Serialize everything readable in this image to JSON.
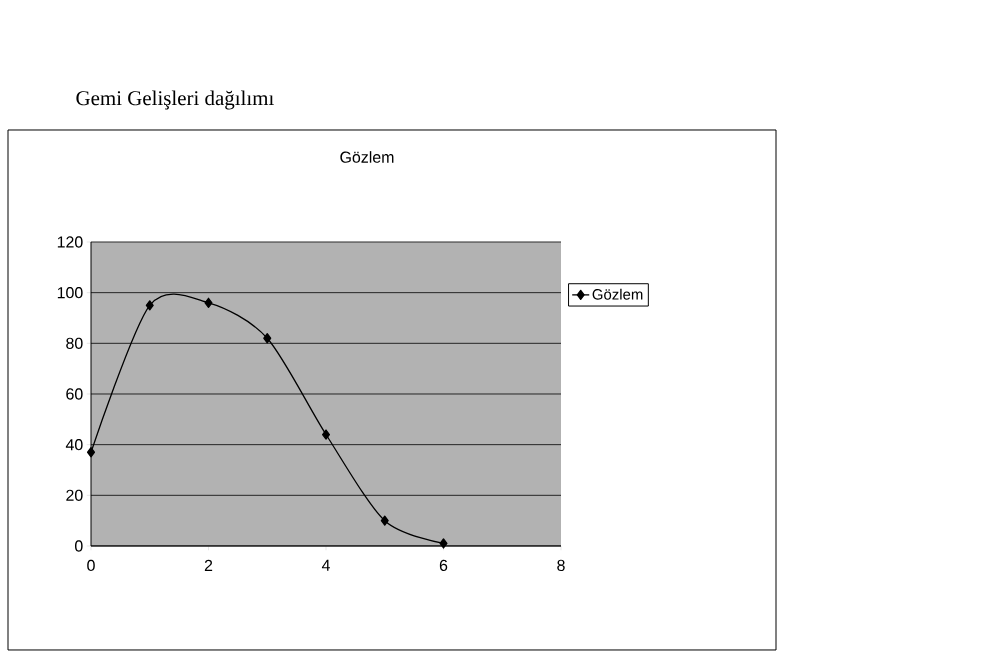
{
  "chart_data": {
    "type": "line",
    "title": "Gemi Gelişleri dağılımı",
    "subtitle": "Gözlem",
    "x": [
      0,
      1,
      2,
      3,
      4,
      5,
      6
    ],
    "series": [
      {
        "name": "Gözlem",
        "color": "#000000",
        "values": [
          37,
          95,
          96,
          82,
          44,
          10,
          1
        ]
      }
    ],
    "xlim": [
      0,
      8
    ],
    "xticks": [
      0,
      2,
      4,
      6,
      8
    ],
    "ylim": [
      0,
      120
    ],
    "yticks": [
      0,
      20,
      40,
      60,
      80,
      100,
      120
    ],
    "grid": "y",
    "legend": "right",
    "marker": "diamond",
    "line_style": "solid"
  }
}
